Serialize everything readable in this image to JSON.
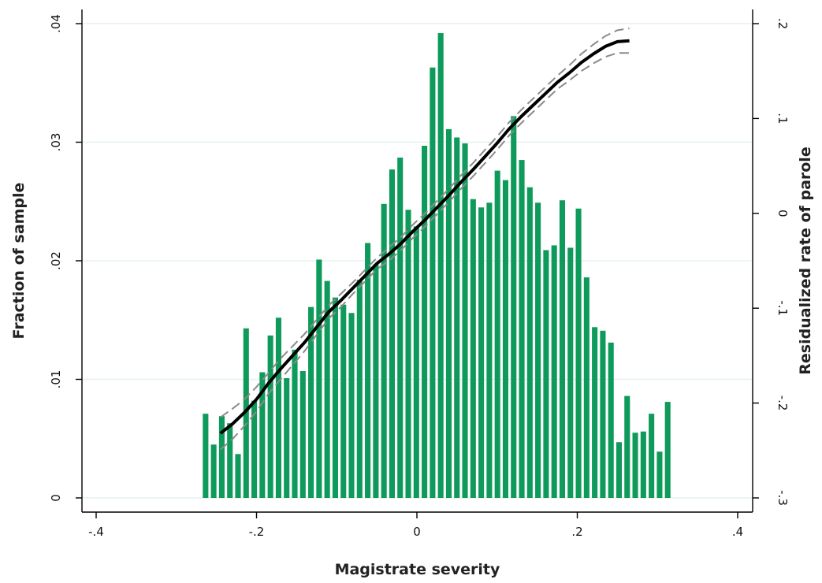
{
  "chart_data": {
    "type": "bar",
    "xlabel": "Magistrate severity",
    "ylabel_left": "Fraction of sample",
    "ylabel_right": "Residualized rate of parole",
    "xlim": [
      -0.4,
      0.4
    ],
    "ylim_left": [
      0,
      0.04
    ],
    "ylim_right": [
      -0.3,
      0.2
    ],
    "x_ticks": [
      {
        "value": -0.4,
        "label": "-.4"
      },
      {
        "value": -0.2,
        "label": "-.2"
      },
      {
        "value": 0,
        "label": "0"
      },
      {
        "value": 0.2,
        "label": ".2"
      },
      {
        "value": 0.4,
        "label": ".4"
      }
    ],
    "y_left_ticks": [
      {
        "value": 0,
        "label": "0"
      },
      {
        "value": 0.01,
        "label": ".01"
      },
      {
        "value": 0.02,
        "label": ".02"
      },
      {
        "value": 0.03,
        "label": ".03"
      },
      {
        "value": 0.04,
        "label": ".04"
      }
    ],
    "y_right_ticks": [
      {
        "value": -0.3,
        "label": "-.3"
      },
      {
        "value": -0.2,
        "label": "-.2"
      },
      {
        "value": -0.1,
        "label": "-.1"
      },
      {
        "value": 0,
        "label": "0"
      },
      {
        "value": 0.1,
        "label": ".1"
      },
      {
        "value": 0.2,
        "label": ".2"
      }
    ],
    "grid": true,
    "histogram": {
      "bin_start": -0.268,
      "bin_width": 0.01011,
      "values": [
        0.0071,
        0.0045,
        0.0069,
        0.0063,
        0.0037,
        0.0143,
        0.0082,
        0.0106,
        0.0137,
        0.0152,
        0.0101,
        0.0125,
        0.0107,
        0.0161,
        0.0201,
        0.0183,
        0.0169,
        0.0163,
        0.0156,
        0.0184,
        0.0215,
        0.0197,
        0.0248,
        0.0277,
        0.0287,
        0.0243,
        0.0229,
        0.0297,
        0.0363,
        0.0392,
        0.0311,
        0.0304,
        0.0299,
        0.0252,
        0.0245,
        0.0249,
        0.0276,
        0.0268,
        0.0322,
        0.0285,
        0.0262,
        0.0249,
        0.0209,
        0.0213,
        0.0251,
        0.0211,
        0.0244,
        0.0186,
        0.0144,
        0.0141,
        0.0131,
        0.0047,
        0.0086,
        0.0055,
        0.0056,
        0.0071,
        0.0039,
        0.0081
      ]
    },
    "fit_line": {
      "x": [
        -0.245,
        -0.23,
        -0.215,
        -0.2,
        -0.185,
        -0.17,
        -0.155,
        -0.14,
        -0.125,
        -0.11,
        -0.095,
        -0.08,
        -0.065,
        -0.05,
        -0.035,
        -0.02,
        -0.005,
        0.01,
        0.025,
        0.04,
        0.055,
        0.07,
        0.085,
        0.1,
        0.115,
        0.13,
        0.145,
        0.16,
        0.175,
        0.19,
        0.205,
        0.22,
        0.235,
        0.25,
        0.265
      ],
      "y": [
        -0.232,
        -0.222,
        -0.21,
        -0.196,
        -0.179,
        -0.164,
        -0.15,
        -0.136,
        -0.12,
        -0.104,
        -0.092,
        -0.079,
        -0.066,
        -0.053,
        -0.043,
        -0.032,
        -0.019,
        -0.007,
        0.006,
        0.019,
        0.033,
        0.046,
        0.06,
        0.074,
        0.089,
        0.102,
        0.114,
        0.126,
        0.138,
        0.148,
        0.159,
        0.168,
        0.176,
        0.181,
        0.182
      ]
    },
    "ci_upper": {
      "x": [
        -0.245,
        -0.23,
        -0.215,
        -0.2,
        -0.185,
        -0.17,
        -0.155,
        -0.14,
        -0.125,
        -0.11,
        -0.095,
        -0.08,
        -0.065,
        -0.05,
        -0.035,
        -0.02,
        -0.005,
        0.01,
        0.025,
        0.04,
        0.055,
        0.07,
        0.085,
        0.1,
        0.115,
        0.13,
        0.145,
        0.16,
        0.175,
        0.19,
        0.205,
        0.22,
        0.235,
        0.25,
        0.265
      ],
      "y": [
        -0.215,
        -0.206,
        -0.196,
        -0.183,
        -0.168,
        -0.153,
        -0.14,
        -0.127,
        -0.112,
        -0.097,
        -0.085,
        -0.073,
        -0.06,
        -0.047,
        -0.036,
        -0.025,
        -0.012,
        0.0,
        0.013,
        0.026,
        0.04,
        0.053,
        0.067,
        0.081,
        0.096,
        0.109,
        0.121,
        0.133,
        0.145,
        0.156,
        0.168,
        0.178,
        0.187,
        0.193,
        0.195
      ]
    },
    "ci_lower": {
      "x": [
        -0.245,
        -0.23,
        -0.215,
        -0.2,
        -0.185,
        -0.17,
        -0.155,
        -0.14,
        -0.125,
        -0.11,
        -0.095,
        -0.08,
        -0.065,
        -0.05,
        -0.035,
        -0.02,
        -0.005,
        0.01,
        0.025,
        0.04,
        0.055,
        0.07,
        0.085,
        0.1,
        0.115,
        0.13,
        0.145,
        0.16,
        0.175,
        0.19,
        0.205,
        0.22,
        0.235,
        0.25,
        0.265
      ],
      "y": [
        -0.249,
        -0.238,
        -0.224,
        -0.209,
        -0.19,
        -0.175,
        -0.16,
        -0.145,
        -0.128,
        -0.111,
        -0.099,
        -0.085,
        -0.072,
        -0.059,
        -0.05,
        -0.039,
        -0.026,
        -0.014,
        -0.001,
        0.012,
        0.026,
        0.039,
        0.053,
        0.067,
        0.082,
        0.095,
        0.107,
        0.119,
        0.131,
        0.14,
        0.15,
        0.158,
        0.165,
        0.169,
        0.169
      ]
    },
    "colors": {
      "bars": "#0e9a5a",
      "fit_line": "#000000",
      "ci_lines": "#8a8a8a",
      "grid": "#e6f0f2"
    }
  }
}
